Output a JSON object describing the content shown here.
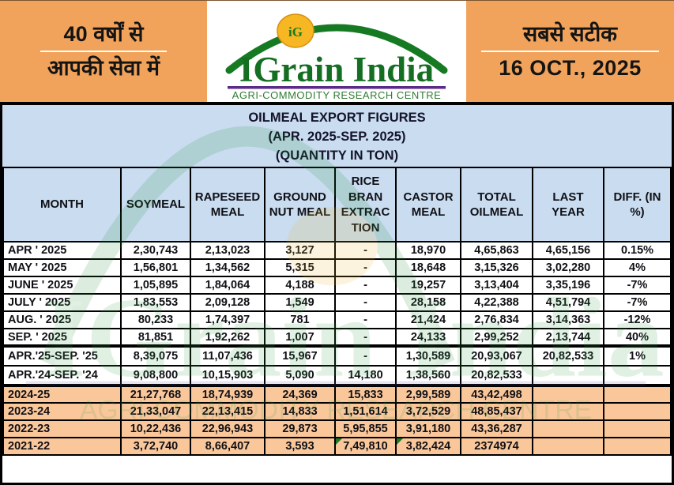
{
  "header": {
    "left": {
      "line1": "40 वर्षों से",
      "line2": "आपकी सेवा में"
    },
    "logo": {
      "name": "IGrain India",
      "badge": "iG",
      "tagline": "AGRI-COMMODITY RESEARCH CENTRE"
    },
    "right": {
      "line1": "सबसे सटीक",
      "date": "16 OCT., 2025"
    }
  },
  "chart_data": {
    "type": "table",
    "title": "OILMEAL EXPORT FIGURES",
    "subtitle": "(APR. 2025-SEP. 2025)",
    "unit_note": "(QUANTITY IN TON)",
    "title_lines": [
      "OILMEAL EXPORT FIGURES",
      "(APR. 2025-SEP. 2025)",
      "(QUANTITY IN TON)"
    ],
    "columns": [
      "MONTH",
      "SOYMEAL",
      "RAPESEED MEAL",
      "GROUND NUT MEAL",
      "RICE BRAN EXTRACTION",
      "CASTOR MEAL",
      "TOTAL OILMEAL",
      "LAST YEAR",
      "DIFF. (IN %)"
    ],
    "rows": [
      {
        "cells": [
          "APR ' 2025",
          "2,30,743",
          "2,13,023",
          "3,127",
          "-",
          "18,970",
          "4,65,863",
          "4,65,156",
          "0.15%"
        ],
        "style": "white"
      },
      {
        "cells": [
          "MAY ' 2025",
          "1,56,801",
          "1,34,562",
          "5,315",
          "-",
          "18,648",
          "3,15,326",
          "3,02,280",
          "4%"
        ],
        "style": "white"
      },
      {
        "cells": [
          "JUNE ' 2025",
          "1,05,895",
          "1,84,064",
          "4,188",
          "-",
          "19,257",
          "3,13,404",
          "3,35,196",
          "-7%"
        ],
        "style": "white"
      },
      {
        "cells": [
          "JULY ' 2025",
          "1,83,553",
          "2,09,128",
          "1,549",
          "-",
          "28,158",
          "4,22,388",
          "4,51,794",
          "-7%"
        ],
        "style": "white"
      },
      {
        "cells": [
          "AUG. ' 2025",
          "80,233",
          "1,74,397",
          "781",
          "-",
          "21,424",
          "2,76,834",
          "3,14,363",
          "-12%"
        ],
        "style": "white"
      },
      {
        "cells": [
          "SEP. ' 2025",
          "81,851",
          "1,92,262",
          "1,007",
          "-",
          "24,133",
          "2,99,252",
          "2,13,744",
          "40%"
        ],
        "style": "white"
      },
      {
        "cells": [
          "APR.'25-SEP. '25",
          "8,39,075",
          "11,07,436",
          "15,967",
          "-",
          "1,30,589",
          "20,93,067",
          "20,82,533",
          "1%"
        ],
        "style": "white",
        "thick_top": true,
        "tall": true
      },
      {
        "cells": [
          "APR.'24-SEP. '24",
          "9,08,800",
          "10,15,903",
          "5,090",
          "14,180",
          "1,38,560",
          "20,82,533",
          "",
          ""
        ],
        "style": "white",
        "tall": true
      },
      {
        "cells": [
          "2024-25",
          "21,27,768",
          "18,74,939",
          "24,369",
          "15,833",
          "2,99,589",
          "43,42,498",
          "",
          ""
        ],
        "style": "orange",
        "thick_top": true
      },
      {
        "cells": [
          "2023-24",
          "21,33,047",
          "22,13,415",
          "14,833",
          "1,51,614",
          "3,72,529",
          "48,85,437",
          "",
          ""
        ],
        "style": "orange"
      },
      {
        "cells": [
          "2022-23",
          "10,22,436",
          "22,96,943",
          "29,873",
          "5,95,855",
          "3,91,180",
          "43,36,287",
          "",
          ""
        ],
        "style": "orange"
      },
      {
        "cells": [
          "2021-22",
          "3,72,740",
          "8,66,407",
          "3,593",
          "7,49,810",
          "3,82,424",
          "2374974",
          "",
          ""
        ],
        "style": "orange",
        "green_triangle_cols": [
          4,
          5
        ]
      }
    ]
  },
  "colors": {
    "orange": "#F1A35C",
    "roworange": "#FAC79B",
    "blue": "#C9DCF0",
    "green": "#156F23",
    "purple": "#5B2B8A"
  }
}
